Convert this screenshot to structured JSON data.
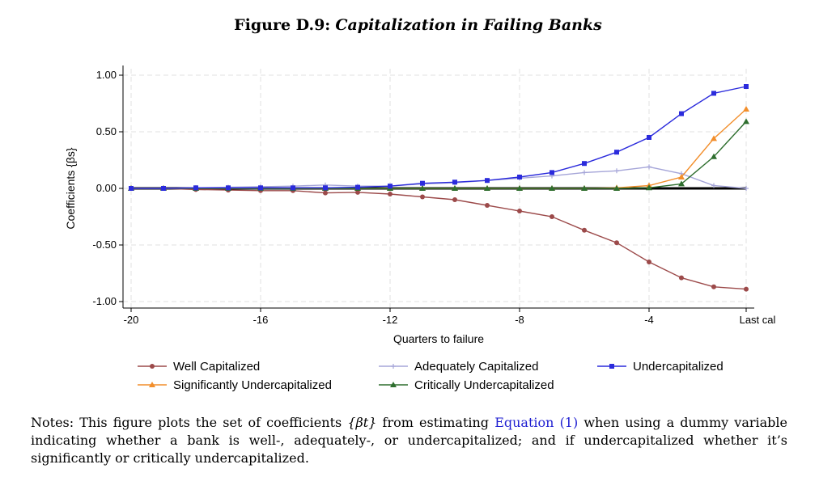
{
  "figure": {
    "label": "Figure D.9:",
    "name": "Capitalization in Failing Banks"
  },
  "notes": {
    "prefix": "Notes: This figure plots the set of coefficients ",
    "math": "{βt}",
    "middle": " from estimating ",
    "link_text": "Equation (1)",
    "suffix": " when using a dummy variable indicating whether a bank is well-, adequately-, or undercapitalized; and if undercapitalized whether it’s significantly or critically undercapitalized."
  },
  "chart_data": {
    "type": "line",
    "xlabel": "Quarters to failure",
    "ylabel": "Coefficients {βs}",
    "x": [
      -20,
      -19,
      -18,
      -17,
      -16,
      -15,
      -14,
      -13,
      -12,
      -11,
      -10,
      -9,
      -8,
      -7,
      -6,
      -5,
      -4,
      -3,
      -2,
      -1
    ],
    "xticks": [
      -20,
      -16,
      -12,
      -8,
      -4,
      -1
    ],
    "xtick_labels": [
      "-20",
      "-16",
      "-12",
      "-8",
      "-4",
      "Last cal"
    ],
    "yticks": [
      -1.0,
      -0.5,
      0.0,
      0.5,
      1.0
    ],
    "ytick_labels": [
      "-1.00",
      "-0.50",
      "0.00",
      "0.50",
      "1.00"
    ],
    "xlim": [
      -20,
      -1
    ],
    "ylim": [
      -1.0,
      1.0
    ],
    "grid": true,
    "zero_line": true,
    "legend_position": "bottom",
    "series": [
      {
        "name": "Well Capitalized",
        "color": "#9c4a4a",
        "marker": "circle",
        "values": [
          0.0,
          0.0,
          -0.01,
          -0.015,
          -0.02,
          -0.02,
          -0.04,
          -0.035,
          -0.05,
          -0.075,
          -0.1,
          -0.15,
          -0.2,
          -0.25,
          -0.37,
          -0.48,
          -0.65,
          -0.79,
          -0.87,
          -0.89
        ]
      },
      {
        "name": "Significantly Undercapitalized",
        "color": "#f28e2b",
        "marker": "triangle",
        "values": [
          0.0,
          0.0,
          0.0,
          0.0,
          0.0,
          0.0,
          0.0,
          0.0,
          0.0,
          0.0,
          0.0,
          0.0,
          0.0,
          0.0,
          0.0,
          0.005,
          0.025,
          0.1,
          0.44,
          0.7
        ]
      },
      {
        "name": "Adequately Capitalized",
        "color": "#a5a5d8",
        "marker": "plus",
        "values": [
          0.0,
          0.0,
          0.005,
          0.01,
          0.015,
          0.02,
          0.03,
          0.02,
          0.02,
          0.04,
          0.05,
          0.07,
          0.09,
          0.11,
          0.14,
          0.155,
          0.19,
          0.13,
          0.025,
          0.0
        ]
      },
      {
        "name": "Critically Undercapitalized",
        "color": "#2e6e2e",
        "marker": "triangle",
        "values": [
          0.0,
          0.0,
          0.0,
          0.0,
          0.0,
          0.0,
          0.0,
          0.0,
          0.0,
          0.0,
          0.0,
          0.0,
          0.0,
          0.0,
          0.0,
          0.0,
          0.005,
          0.04,
          0.28,
          0.59
        ]
      },
      {
        "name": "Undercapitalized",
        "color": "#2b2bdc",
        "marker": "square",
        "values": [
          0.0,
          0.0,
          0.005,
          0.005,
          0.005,
          0.005,
          0.005,
          0.01,
          0.02,
          0.045,
          0.055,
          0.07,
          0.1,
          0.14,
          0.22,
          0.32,
          0.45,
          0.66,
          0.84,
          0.9
        ]
      }
    ]
  }
}
